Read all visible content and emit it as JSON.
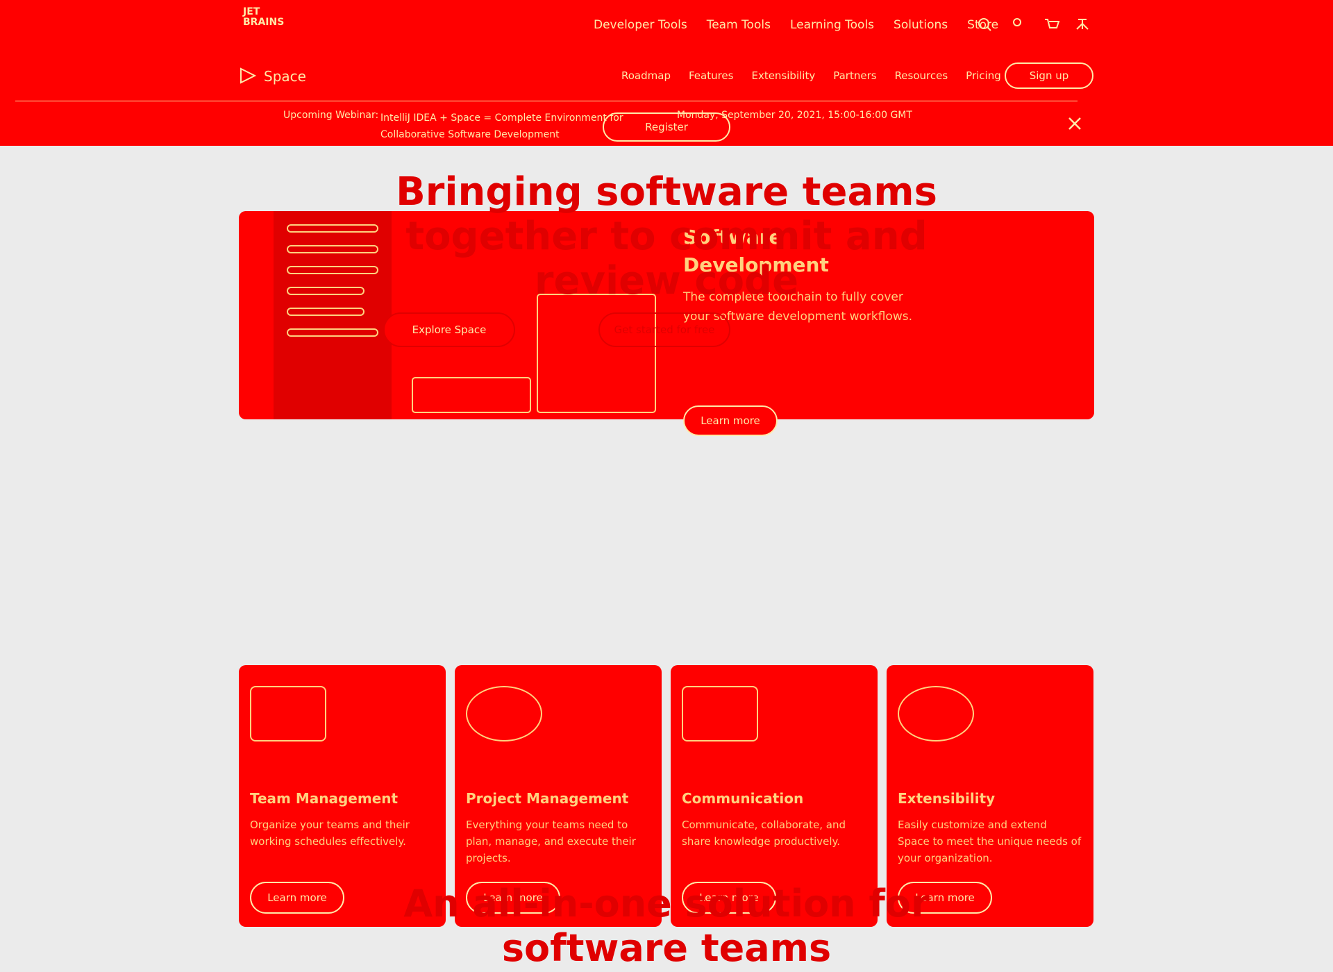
{
  "header": {
    "logo": [
      "JET",
      "BRAINS"
    ],
    "nav": [
      "Developer Tools",
      "Team Tools",
      "Learning Tools",
      "Solutions",
      "Store"
    ]
  },
  "subnav": {
    "product": "Space",
    "items": [
      "Roadmap",
      "Features",
      "Extensibility",
      "Partners",
      "Resources",
      "Pricing"
    ],
    "cta": "Sign up"
  },
  "banner": {
    "label": "Upcoming Webinar:",
    "title": "IntelliJ IDEA + Space = Complete Environment for Collaborative Software Development",
    "date": "Monday, September 20, 2021, 15:00-16:00 GMT",
    "button": "Register"
  },
  "hero": {
    "title": "Bringing software teams together to commit and review code",
    "buttons": [
      "Explore Space",
      "Get started for free"
    ]
  },
  "feature": {
    "title": "Software Development",
    "text": "The complete toolchain to fully cover your software development workflows.",
    "button": "Learn more"
  },
  "cards": [
    {
      "title": "Team Management",
      "text": "Organize your teams and their working schedules effectively.",
      "button": "Learn more"
    },
    {
      "title": "Project Management",
      "text": "Everything your teams need to plan, manage, and execute their projects.",
      "button": "Learn more"
    },
    {
      "title": "Communication",
      "text": "Communicate, collaborate, and share knowledge productively.",
      "button": "Learn more"
    },
    {
      "title": "Extensibility",
      "text": "Easily customize and extend Space to meet the unique needs of your organization.",
      "button": "Learn more"
    }
  ],
  "section": {
    "title": "An all-in-one solution for software teams"
  }
}
